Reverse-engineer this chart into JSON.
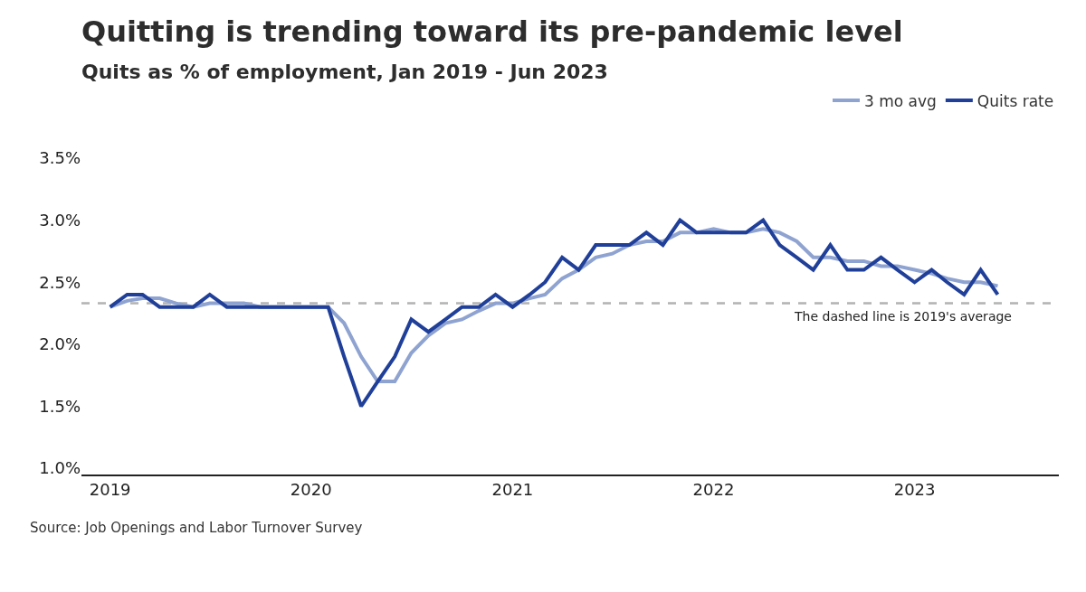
{
  "chart_data": {
    "type": "line",
    "title": "Quitting is trending toward its pre-pandemic level",
    "subtitle": "Quits as % of employment, Jan 2019 - Jun 2023",
    "x": [
      "2019-01",
      "2019-02",
      "2019-03",
      "2019-04",
      "2019-05",
      "2019-06",
      "2019-07",
      "2019-08",
      "2019-09",
      "2019-10",
      "2019-11",
      "2019-12",
      "2020-01",
      "2020-02",
      "2020-03",
      "2020-04",
      "2020-05",
      "2020-06",
      "2020-07",
      "2020-08",
      "2020-09",
      "2020-10",
      "2020-11",
      "2020-12",
      "2021-01",
      "2021-02",
      "2021-03",
      "2021-04",
      "2021-05",
      "2021-06",
      "2021-07",
      "2021-08",
      "2021-09",
      "2021-10",
      "2021-11",
      "2021-12",
      "2022-01",
      "2022-02",
      "2022-03",
      "2022-04",
      "2022-05",
      "2022-06",
      "2022-07",
      "2022-08",
      "2022-09",
      "2022-10",
      "2022-11",
      "2022-12",
      "2023-01",
      "2023-02",
      "2023-03",
      "2023-04",
      "2023-05",
      "2023-06"
    ],
    "series": [
      {
        "name": "3 mo avg",
        "color": "#8fa3d1",
        "values": [
          2.3,
          2.35,
          2.37,
          2.37,
          2.33,
          2.3,
          2.33,
          2.33,
          2.33,
          2.3,
          2.3,
          2.3,
          2.3,
          2.3,
          2.17,
          1.9,
          1.7,
          1.7,
          1.93,
          2.07,
          2.17,
          2.2,
          2.27,
          2.33,
          2.33,
          2.37,
          2.4,
          2.53,
          2.6,
          2.7,
          2.73,
          2.8,
          2.83,
          2.83,
          2.9,
          2.9,
          2.93,
          2.9,
          2.9,
          2.93,
          2.9,
          2.83,
          2.7,
          2.7,
          2.67,
          2.67,
          2.63,
          2.63,
          2.6,
          2.57,
          2.53,
          2.5,
          2.5,
          2.47
        ]
      },
      {
        "name": "Quits rate",
        "color": "#1f3f99",
        "values": [
          2.3,
          2.4,
          2.4,
          2.3,
          2.3,
          2.3,
          2.4,
          2.3,
          2.3,
          2.3,
          2.3,
          2.3,
          2.3,
          2.3,
          1.9,
          1.5,
          1.7,
          1.9,
          2.2,
          2.1,
          2.2,
          2.3,
          2.3,
          2.4,
          2.3,
          2.4,
          2.5,
          2.7,
          2.6,
          2.8,
          2.8,
          2.8,
          2.9,
          2.8,
          3.0,
          2.9,
          2.9,
          2.9,
          2.9,
          3.0,
          2.8,
          2.7,
          2.6,
          2.8,
          2.6,
          2.6,
          2.7,
          2.6,
          2.5,
          2.6,
          2.5,
          2.4,
          2.6,
          2.4
        ]
      }
    ],
    "xlim": [
      "2018-11-10",
      "2023-09-20"
    ],
    "xticks": [
      {
        "value": "2019-01-01",
        "label": "2019"
      },
      {
        "value": "2020-01-01",
        "label": "2020"
      },
      {
        "value": "2021-01-01",
        "label": "2021"
      },
      {
        "value": "2022-01-01",
        "label": "2022"
      },
      {
        "value": "2023-01-01",
        "label": "2023"
      }
    ],
    "ylim": [
      0.95,
      3.5
    ],
    "yticks": [
      {
        "value": 1.0,
        "label": "1.0%"
      },
      {
        "value": 1.5,
        "label": "1.5%"
      },
      {
        "value": 2.0,
        "label": "2.0%"
      },
      {
        "value": 2.5,
        "label": "2.5%"
      },
      {
        "value": 3.0,
        "label": "3.0%"
      },
      {
        "value": 3.5,
        "label": "3.5%"
      }
    ],
    "ref_lines": [
      {
        "axis": "y",
        "value": 2.33,
        "label": "The dashed line is 2019's average",
        "color": "#b3b3b3",
        "line_style": "dashed"
      }
    ],
    "annotations": [
      "Source: Job Openings and Labor Turnover Survey"
    ],
    "grid": false,
    "legend": "top right",
    "marker": "none",
    "line_style": "solid"
  }
}
